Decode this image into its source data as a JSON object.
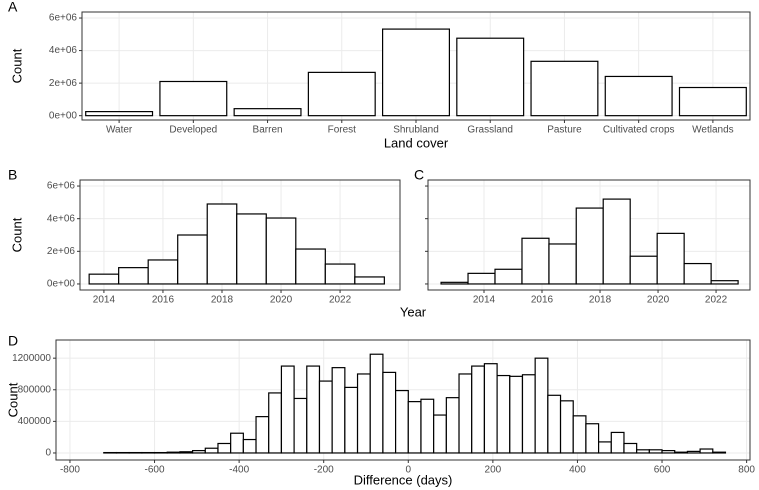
{
  "chart_data": [
    {
      "type": "bar",
      "panel": "A",
      "x_label": "Land cover",
      "y_label": "Count",
      "categories": [
        "Water",
        "Developed",
        "Barren",
        "Forest",
        "Shrubland",
        "Grassland",
        "Pasture",
        "Cultivated crops",
        "Wetlands"
      ],
      "values": [
        250000,
        2100000,
        430000,
        2660000,
        5320000,
        4760000,
        3340000,
        2410000,
        1730000
      ],
      "color": "#ffffff",
      "edgecolor": "#000000",
      "ylim": [
        -266000,
        6370000
      ],
      "yticks": [
        {
          "value": 0,
          "label": "0e+00"
        },
        {
          "value": 2000000,
          "label": "2e+06"
        },
        {
          "value": 4000000,
          "label": "4e+06"
        },
        {
          "value": 6000000,
          "label": "6e+06"
        }
      ],
      "grid": true
    },
    {
      "type": "histogram",
      "panel": "B",
      "x_label": "Year",
      "y_label": "Count",
      "bins": [
        2013.5,
        2014.5,
        2015.5,
        2016.5,
        2017.5,
        2018.5,
        2019.5,
        2020.5,
        2021.5,
        2022.5,
        2023.5
      ],
      "values": [
        600000,
        1000000,
        1470000,
        3000000,
        4900000,
        4290000,
        4040000,
        2140000,
        1220000,
        430000
      ],
      "color": "#ffffff",
      "edgecolor": "#000000",
      "xlim": [
        2013.19,
        2024.03
      ],
      "xticks": [
        2014,
        2016,
        2018,
        2020,
        2022
      ],
      "ylim": [
        -370000,
        6370000
      ],
      "yticks": [
        {
          "value": 0,
          "label": "0e+00"
        },
        {
          "value": 2000000,
          "label": "2e+06"
        },
        {
          "value": 4000000,
          "label": "4e+06"
        },
        {
          "value": 6000000,
          "label": "6e+06"
        }
      ],
      "grid": true
    },
    {
      "type": "histogram",
      "panel": "C",
      "bins": [
        2012.52,
        2013.45,
        2014.38,
        2015.31,
        2016.24,
        2017.18,
        2018.11,
        2019.04,
        2019.97,
        2020.9,
        2021.83,
        2022.76
      ],
      "values": [
        100000,
        650000,
        900000,
        2800000,
        2450000,
        4650000,
        5200000,
        1700000,
        3100000,
        1250000,
        200000
      ],
      "color": "#ffffff",
      "edgecolor": "#000000",
      "xlim": [
        2012.07,
        2023.17
      ],
      "xticks": [
        2014,
        2016,
        2018,
        2020,
        2022
      ],
      "ylim": [
        -370000,
        6370000
      ],
      "yticks": [
        0,
        2000000,
        4000000,
        6000000
      ],
      "ytick_labels": false,
      "grid": true
    },
    {
      "type": "histogram",
      "panel": "D",
      "x_label": "Difference (days)",
      "y_label": "Count",
      "bins": [
        -720,
        -690,
        -660,
        -630,
        -600,
        -570,
        -540,
        -510,
        -480,
        -450,
        -420,
        -390,
        -360,
        -330,
        -300,
        -270,
        -240,
        -210,
        -180,
        -150,
        -120,
        -90,
        -60,
        -30,
        0,
        30,
        60,
        90,
        120,
        150,
        180,
        210,
        240,
        270,
        300,
        330,
        360,
        390,
        420,
        450,
        480,
        510,
        540,
        570,
        600,
        630,
        660,
        690,
        720,
        750
      ],
      "values": [
        5000,
        5000,
        5000,
        5000,
        5000,
        10000,
        15000,
        30000,
        60000,
        120000,
        250000,
        170000,
        460000,
        760000,
        1100000,
        690000,
        1100000,
        910000,
        1080000,
        830000,
        1000000,
        1250000,
        1020000,
        790000,
        650000,
        680000,
        480000,
        700000,
        1000000,
        1100000,
        1130000,
        980000,
        970000,
        990000,
        1200000,
        730000,
        660000,
        470000,
        370000,
        140000,
        260000,
        120000,
        40000,
        40000,
        30000,
        10000,
        20000,
        50000,
        10000
      ],
      "color": "#ffffff",
      "edgecolor": "#000000",
      "xlim": [
        -833,
        808
      ],
      "xticks": [
        -800,
        -600,
        -400,
        -200,
        0,
        200,
        400,
        600,
        800
      ],
      "ylim": [
        -89000,
        1430000
      ],
      "yticks": [
        0,
        400000,
        800000,
        1200000
      ],
      "grid": true
    }
  ]
}
